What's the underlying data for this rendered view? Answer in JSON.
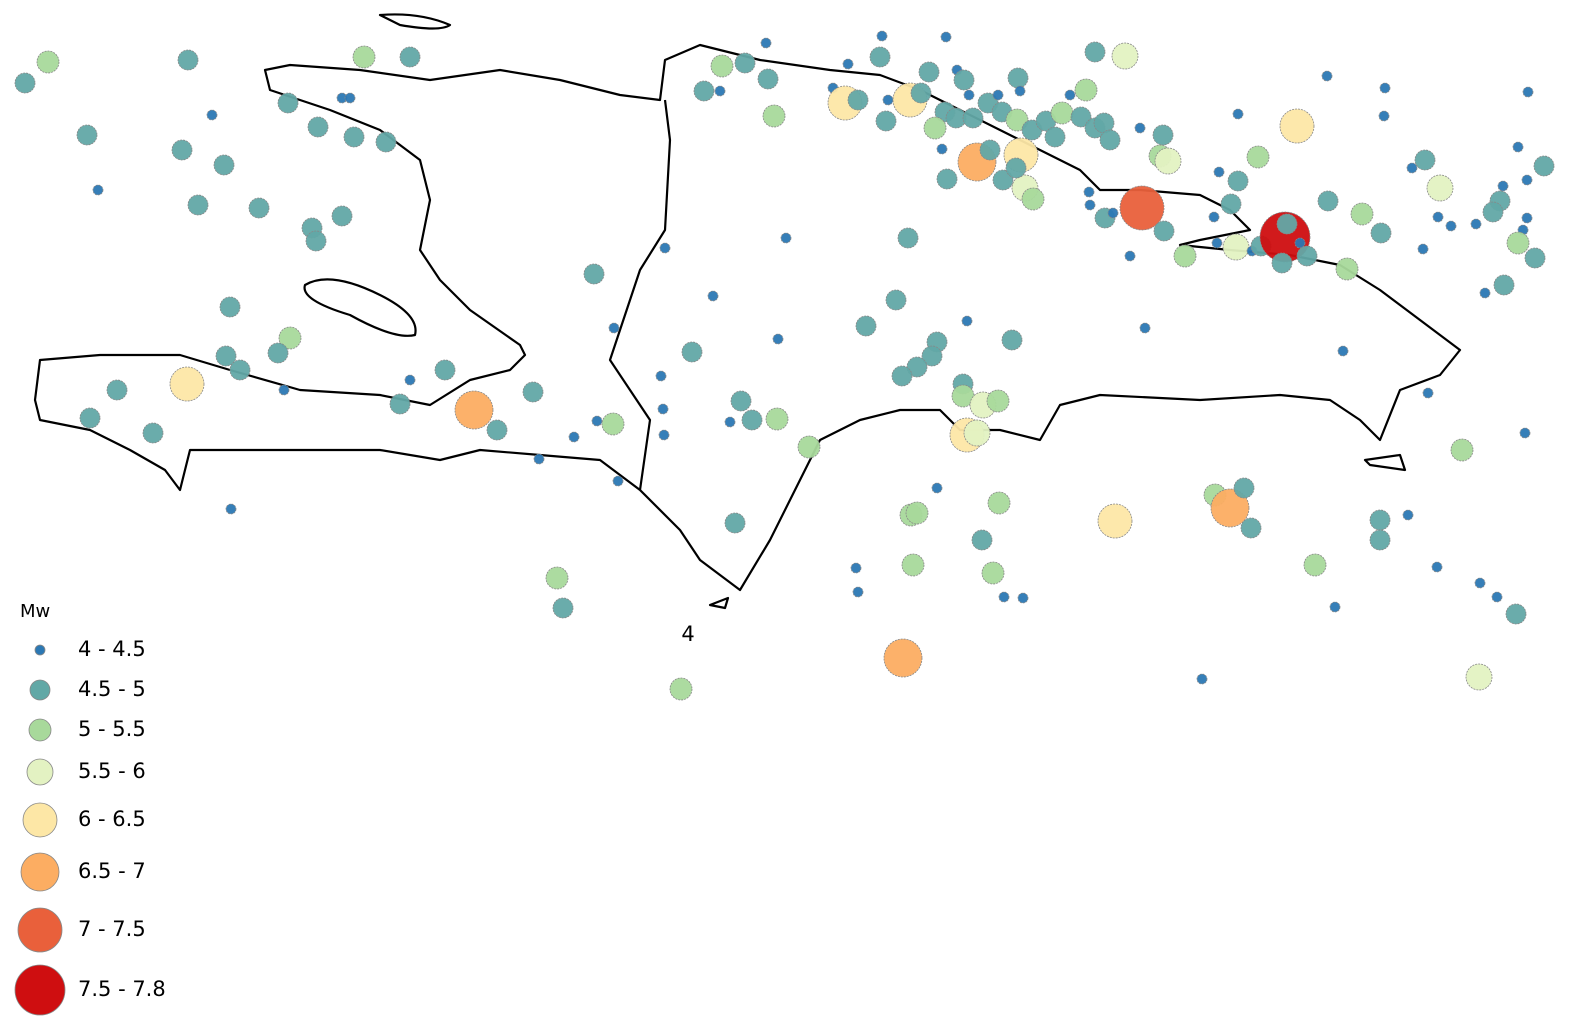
{
  "legend": {
    "title": "Mw",
    "items": [
      {
        "label": "4 - 4.5",
        "color": "#2b78b4"
      },
      {
        "label": "4.5 - 5",
        "color": "#62a8a6"
      },
      {
        "label": "5 - 5.5",
        "color": "#a8d99b"
      },
      {
        "label": "5.5 - 6",
        "color": "#e3f2c2"
      },
      {
        "label": "6 - 6.5",
        "color": "#fde7a6"
      },
      {
        "label": "6.5 - 7",
        "color": "#fcad62"
      },
      {
        "label": "7 - 7.5",
        "color": "#e9603b"
      },
      {
        "label": "7.5 - 7.8",
        "color": "#cf0e10"
      }
    ]
  },
  "map_label": "4"
}
